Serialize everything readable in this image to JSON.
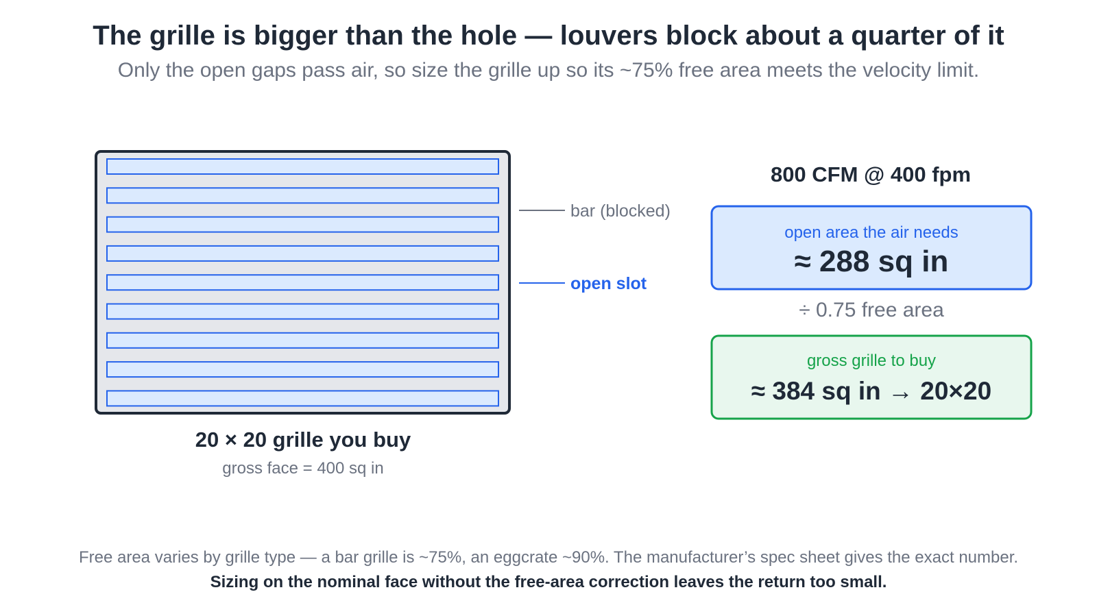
{
  "header": {
    "title": "The grille is bigger than the hole — louvers block about a quarter of it",
    "subtitle": "Only the open gaps pass air, so size the grille up so its ~75% free area meets the velocity limit."
  },
  "grille": {
    "slot_count": 9,
    "label_bar": "bar (blocked)",
    "label_slot": "open slot",
    "caption": "20 × 20 grille you buy",
    "sub_caption": "gross face = 400 sq in"
  },
  "calc": {
    "flow_label": "800 CFM @ 400 fpm",
    "needed_label": "open area the air needs",
    "needed_value": "≈ 288 sq in",
    "divide_label": "÷ 0.75 free area",
    "gross_label": "gross grille to buy",
    "gross_value": "≈ 384 sq in → 20×20"
  },
  "footer": {
    "note": "Free area varies by grille type — a bar grille is ~75%, an eggcrate ~90%. The manufacturer’s spec sheet gives the exact number.",
    "emphasis": "Sizing on the nominal face without the free-area correction leaves the return too small."
  },
  "colors": {
    "frame": "#1f2937",
    "bar": "#e5e7eb",
    "slot_fill": "#dbeafe",
    "slot_stroke": "#2563eb",
    "accent_blue": "#2563eb",
    "need_fill": "#dbeafe",
    "gross_fill": "#e8f7ee",
    "gross_stroke": "#16a34a",
    "muted": "#6b7280"
  }
}
